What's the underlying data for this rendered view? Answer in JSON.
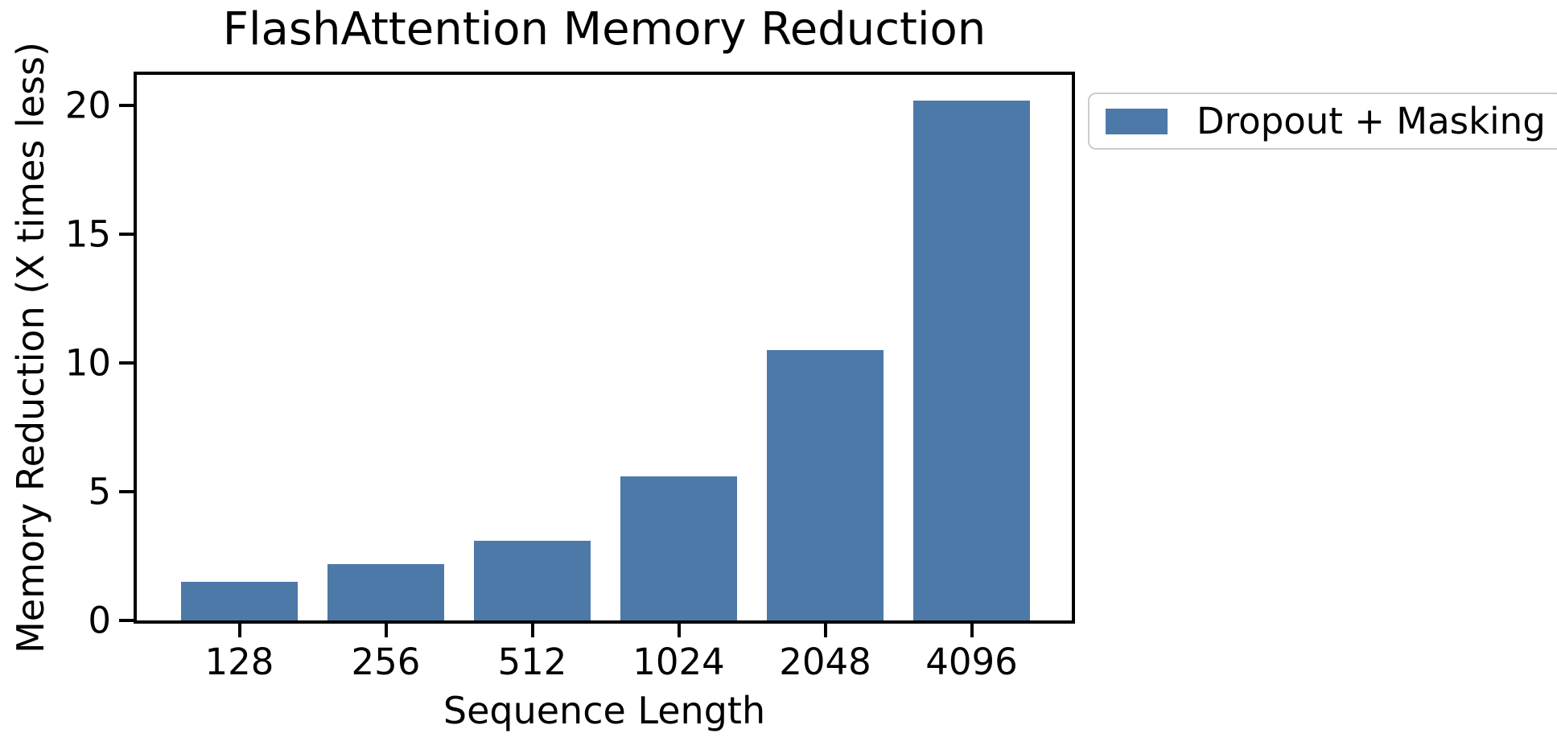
{
  "chart_data": {
    "type": "bar",
    "title": "FlashAttention Memory Reduction",
    "xlabel": "Sequence Length",
    "ylabel": "Memory Reduction (X times less)",
    "categories": [
      "128",
      "256",
      "512",
      "1024",
      "2048",
      "4096"
    ],
    "series": [
      {
        "name": "Dropout + Masking",
        "values": [
          1.5,
          2.2,
          3.1,
          5.6,
          10.5,
          20.2
        ],
        "color": "#4d79a8"
      }
    ],
    "yticks": [
      0,
      5,
      10,
      15,
      20
    ],
    "ylim": [
      0,
      21.2
    ],
    "grid": false,
    "legend_position": "outside-upper-right"
  },
  "colors": {
    "bar": "#4d79a8",
    "axis": "#000000",
    "text": "#000000",
    "background": "#ffffff",
    "legend_border": "#cccccc"
  }
}
